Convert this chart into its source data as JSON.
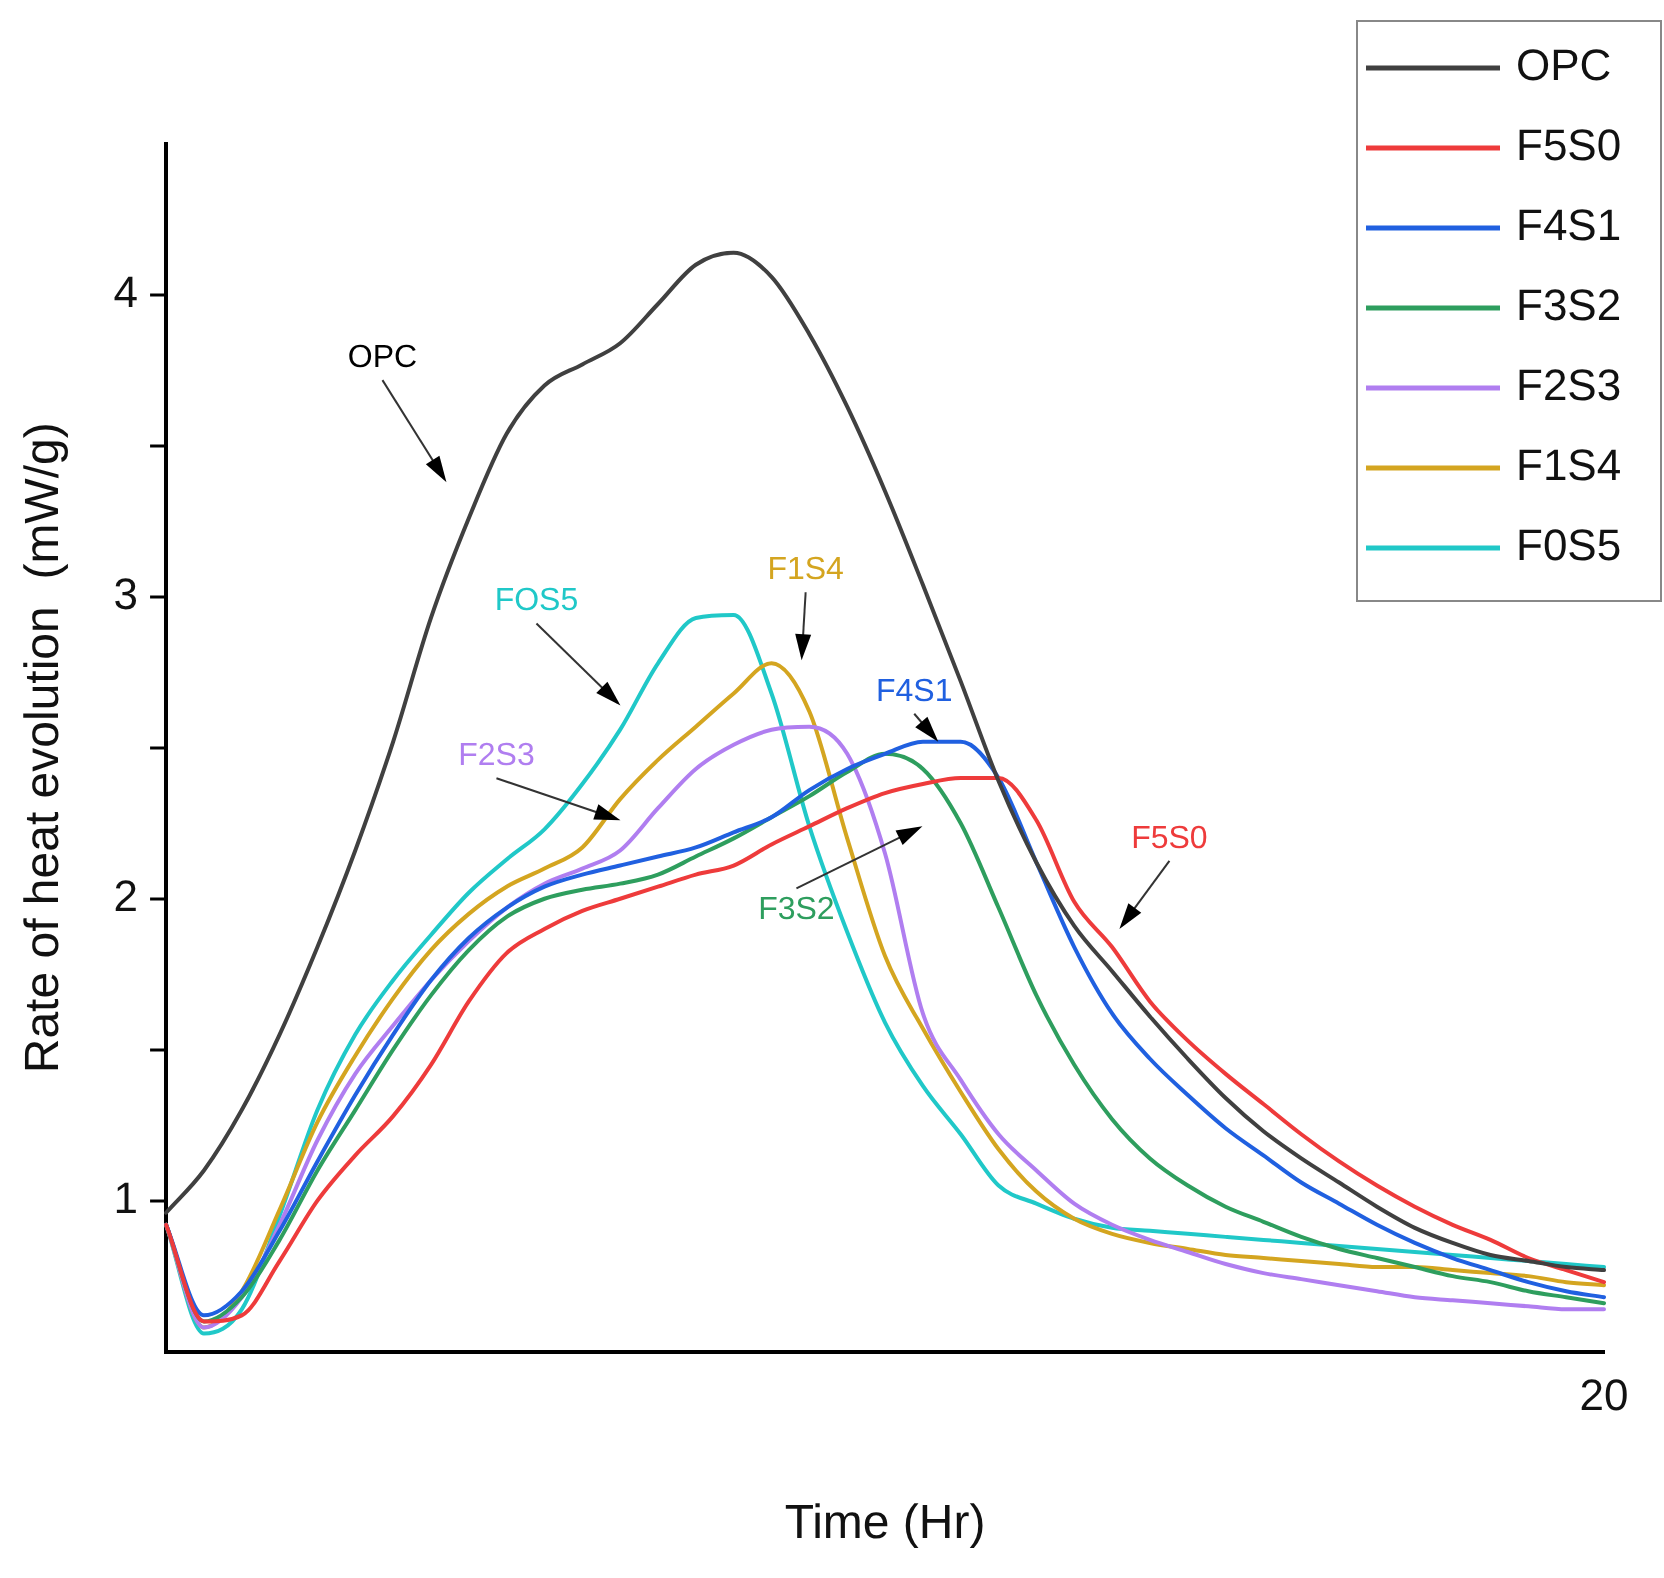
{
  "chart_data": {
    "type": "line",
    "xlabel": "Time (Hr)",
    "ylabel": "Rate of heat evolution  (mW/g)",
    "ylim": [
      0.5,
      4.5
    ],
    "yticks": [
      1,
      {
        "value": 1.5,
        "label": null
      },
      2,
      {
        "value": 2.5,
        "label": null
      },
      3,
      {
        "value": 3.5,
        "label": null
      },
      4
    ],
    "grid": false,
    "legend": "top right",
    "marker": "none",
    "line_style": "solid",
    "categories": [
      null,
      null,
      null,
      null,
      null,
      null,
      null,
      null,
      null,
      null,
      null,
      null,
      null,
      null,
      null,
      null,
      null,
      null,
      null,
      null,
      null,
      null,
      null,
      null,
      null,
      null,
      null,
      null,
      null,
      null,
      null,
      null,
      null,
      null,
      null,
      null,
      null,
      null,
      null
    ],
    "series": [
      {
        "name": "OPC",
        "color": "#404040",
        "values": [
          0.96,
          1.1,
          1.3,
          1.55,
          1.84,
          2.16,
          2.52,
          2.93,
          3.26,
          3.54,
          3.7,
          3.77,
          3.84,
          3.97,
          4.1,
          4.14,
          4.06,
          3.87,
          3.63,
          3.35,
          3.04,
          2.72,
          2.39,
          2.12,
          1.91,
          1.76,
          1.61,
          1.47,
          1.34,
          1.23,
          1.14,
          1.06,
          0.98,
          0.91,
          0.86,
          0.82,
          0.8,
          0.78,
          0.77
        ]
      },
      {
        "name": "F5S0",
        "color": "#ee3b3b",
        "values": [
          0.92,
          0.6,
          0.62,
          0.8,
          1.0,
          1.15,
          1.28,
          1.45,
          1.66,
          1.82,
          1.9,
          1.96,
          2.0,
          2.04,
          2.08,
          2.11,
          2.18,
          2.24,
          2.3,
          2.35,
          2.38,
          2.4,
          2.4,
          2.26,
          1.99,
          1.84,
          1.66,
          1.53,
          1.42,
          1.32,
          1.22,
          1.13,
          1.05,
          0.98,
          0.92,
          0.87,
          0.81,
          0.77,
          0.73
        ]
      },
      {
        "name": "F4S1",
        "color": "#2060e0",
        "values": [
          0.92,
          0.62,
          0.7,
          0.9,
          1.13,
          1.35,
          1.55,
          1.73,
          1.87,
          1.97,
          2.04,
          2.08,
          2.11,
          2.14,
          2.17,
          2.22,
          2.27,
          2.36,
          2.43,
          2.48,
          2.52,
          2.52,
          2.4,
          2.12,
          1.84,
          1.62,
          1.47,
          1.35,
          1.24,
          1.15,
          1.06,
          0.99,
          0.92,
          0.86,
          0.81,
          0.77,
          0.73,
          0.7,
          0.68
        ]
      },
      {
        "name": "F3S2",
        "color": "#2e9e5e",
        "values": [
          0.92,
          0.6,
          0.68,
          0.87,
          1.1,
          1.3,
          1.5,
          1.68,
          1.83,
          1.94,
          2.0,
          2.03,
          2.05,
          2.08,
          2.14,
          2.2,
          2.27,
          2.34,
          2.42,
          2.48,
          2.43,
          2.25,
          1.97,
          1.68,
          1.45,
          1.27,
          1.14,
          1.05,
          0.98,
          0.93,
          0.88,
          0.84,
          0.81,
          0.78,
          0.75,
          0.73,
          0.7,
          0.68,
          0.66
        ]
      },
      {
        "name": "F2S3",
        "color": "#b07ef0",
        "values": [
          0.92,
          0.58,
          0.68,
          0.92,
          1.2,
          1.42,
          1.58,
          1.73,
          1.86,
          1.97,
          2.05,
          2.1,
          2.16,
          2.3,
          2.43,
          2.51,
          2.56,
          2.57,
          2.48,
          2.15,
          1.62,
          1.4,
          1.22,
          1.1,
          0.99,
          0.92,
          0.87,
          0.83,
          0.79,
          0.76,
          0.74,
          0.72,
          0.7,
          0.68,
          0.67,
          0.66,
          0.65,
          0.64,
          0.64
        ]
      },
      {
        "name": "F1S4",
        "color": "#d4a520",
        "values": [
          0.92,
          0.58,
          0.7,
          0.97,
          1.26,
          1.48,
          1.67,
          1.83,
          1.95,
          2.04,
          2.1,
          2.17,
          2.33,
          2.46,
          2.57,
          2.68,
          2.78,
          2.62,
          2.2,
          1.81,
          1.57,
          1.36,
          1.17,
          1.03,
          0.94,
          0.89,
          0.86,
          0.84,
          0.82,
          0.81,
          0.8,
          0.79,
          0.78,
          0.78,
          0.77,
          0.76,
          0.75,
          0.73,
          0.72
        ]
      },
      {
        "name": "F0S5",
        "color": "#20c8c8",
        "values": [
          0.92,
          0.56,
          0.64,
          0.95,
          1.3,
          1.55,
          1.73,
          1.88,
          2.02,
          2.13,
          2.23,
          2.38,
          2.56,
          2.78,
          2.93,
          2.94,
          2.68,
          2.24,
          1.89,
          1.59,
          1.38,
          1.22,
          1.05,
          0.99,
          0.94,
          0.91,
          0.9,
          0.89,
          0.88,
          0.87,
          0.86,
          0.85,
          0.84,
          0.83,
          0.82,
          0.81,
          0.8,
          0.79,
          0.78
        ]
      }
    ],
    "annotations": [
      "OPC",
      "F5S0",
      "F4S1",
      "F3S2",
      "F2S3",
      "F1S4",
      "FOS5",
      "20"
    ]
  }
}
